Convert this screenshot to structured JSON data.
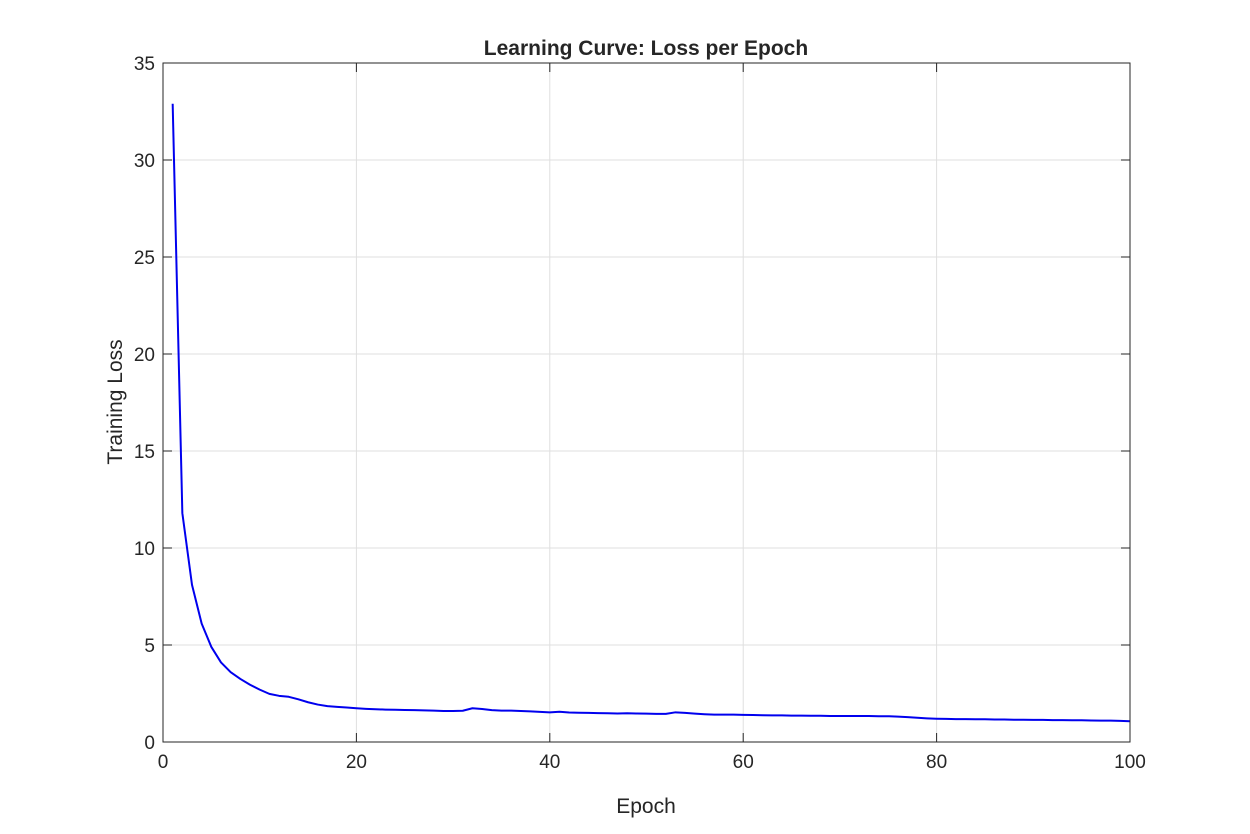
{
  "chart_data": {
    "type": "line",
    "title": "Learning Curve: Loss per Epoch",
    "xlabel": "Epoch",
    "ylabel": "Training Loss",
    "xlim": [
      0,
      100
    ],
    "ylim": [
      0,
      35
    ],
    "xticks": [
      "0",
      "20",
      "40",
      "60",
      "80",
      "100"
    ],
    "yticks": [
      "0",
      "5",
      "10",
      "15",
      "20",
      "25",
      "30",
      "35"
    ],
    "grid": true,
    "line_color": "#0000ee",
    "series": [
      {
        "x": [
          1,
          2,
          3,
          4,
          5,
          6,
          7,
          8,
          9,
          10,
          11,
          12,
          13,
          14,
          15,
          16,
          17,
          18,
          19,
          20,
          21,
          22,
          23,
          24,
          25,
          26,
          27,
          28,
          29,
          30,
          31,
          32,
          33,
          34,
          35,
          36,
          37,
          38,
          39,
          40,
          41,
          42,
          43,
          44,
          45,
          46,
          47,
          48,
          49,
          50,
          51,
          52,
          53,
          54,
          55,
          56,
          57,
          58,
          59,
          60,
          61,
          62,
          63,
          64,
          65,
          66,
          67,
          68,
          69,
          70,
          71,
          72,
          73,
          74,
          75,
          76,
          77,
          78,
          79,
          80,
          81,
          82,
          83,
          84,
          85,
          86,
          87,
          88,
          89,
          90,
          91,
          92,
          93,
          94,
          95,
          96,
          97,
          98,
          99,
          100
        ],
        "values": [
          32.9,
          11.8,
          8.1,
          6.1,
          4.9,
          4.1,
          3.6,
          3.25,
          2.95,
          2.7,
          2.48,
          2.38,
          2.33,
          2.2,
          2.05,
          1.93,
          1.85,
          1.81,
          1.78,
          1.74,
          1.71,
          1.69,
          1.67,
          1.66,
          1.65,
          1.64,
          1.63,
          1.62,
          1.6,
          1.6,
          1.61,
          1.74,
          1.7,
          1.64,
          1.62,
          1.62,
          1.6,
          1.58,
          1.55,
          1.53,
          1.56,
          1.52,
          1.51,
          1.5,
          1.49,
          1.48,
          1.47,
          1.48,
          1.47,
          1.46,
          1.45,
          1.45,
          1.53,
          1.5,
          1.46,
          1.43,
          1.41,
          1.41,
          1.41,
          1.4,
          1.39,
          1.38,
          1.37,
          1.37,
          1.36,
          1.36,
          1.35,
          1.35,
          1.34,
          1.34,
          1.34,
          1.34,
          1.34,
          1.33,
          1.33,
          1.31,
          1.28,
          1.25,
          1.22,
          1.2,
          1.19,
          1.18,
          1.18,
          1.17,
          1.17,
          1.16,
          1.16,
          1.15,
          1.15,
          1.14,
          1.14,
          1.13,
          1.13,
          1.12,
          1.12,
          1.11,
          1.1,
          1.1,
          1.09,
          1.07
        ]
      }
    ]
  }
}
